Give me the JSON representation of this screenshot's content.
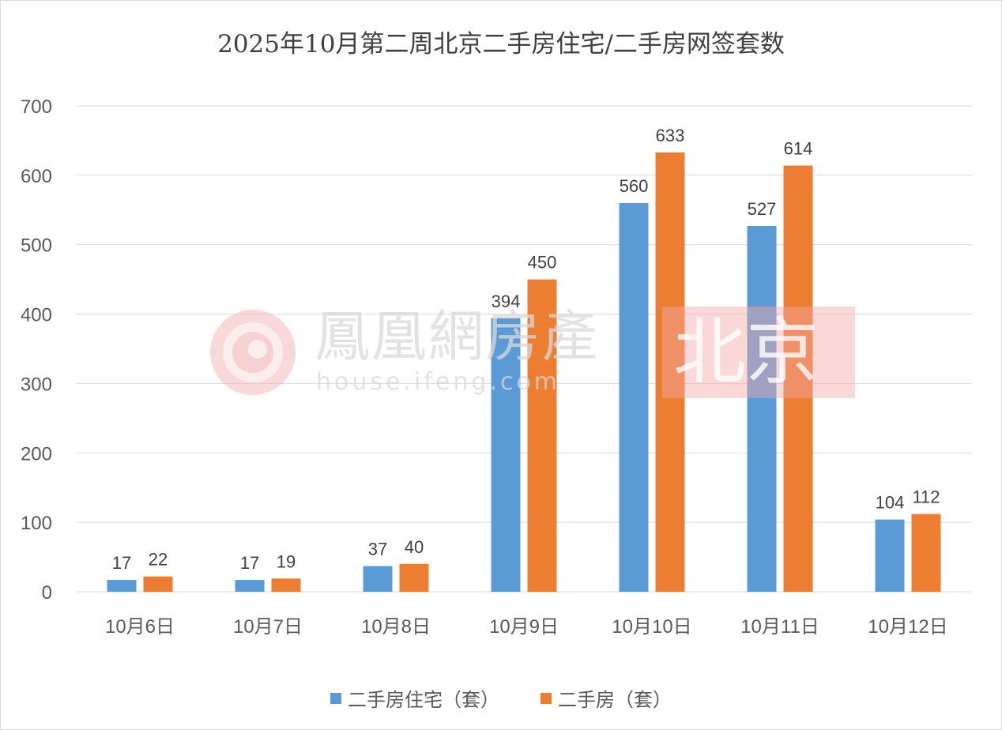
{
  "chart_data": {
    "type": "bar",
    "title": "2025年10月第二周北京二手房住宅/二手房网签套数",
    "categories": [
      "10月6日",
      "10月7日",
      "10月8日",
      "10月9日",
      "10月10日",
      "10月11日",
      "10月12日"
    ],
    "series": [
      {
        "name": "二手房住宅（套）",
        "values": [
          17,
          17,
          37,
          394,
          560,
          527,
          104
        ],
        "color": "#5b9bd5"
      },
      {
        "name": "二手房（套）",
        "values": [
          22,
          19,
          40,
          450,
          633,
          614,
          112
        ],
        "color": "#ed7d31"
      }
    ],
    "ylim": [
      0,
      700
    ],
    "yticks": [
      0,
      100,
      200,
      300,
      400,
      500,
      600,
      700
    ],
    "grid": true,
    "legend_position": "bottom"
  },
  "watermark": {
    "brand": "鳳凰網房產",
    "url": "house.ifeng.com",
    "city": "北京"
  }
}
